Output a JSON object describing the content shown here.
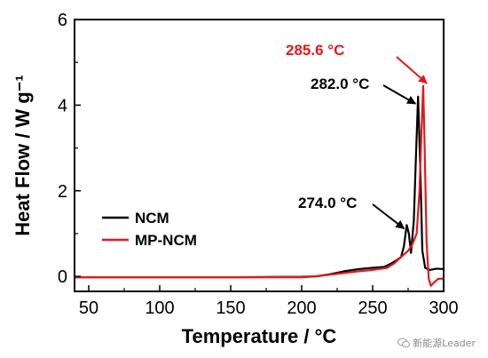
{
  "chart_data": {
    "type": "line",
    "xlabel": "Temperature / °C",
    "ylabel": "Heat Flow / W g⁻¹",
    "xlim": [
      40,
      300
    ],
    "ylim": [
      -0.35,
      6
    ],
    "x_ticks": [
      50,
      100,
      150,
      200,
      250,
      300
    ],
    "y_ticks": [
      0,
      2,
      4,
      6
    ],
    "grid": false,
    "legend_position": "center-left",
    "series": [
      {
        "name": "NCM",
        "color": "#000000",
        "points": [
          [
            40,
            -0.02
          ],
          [
            100,
            -0.02
          ],
          [
            150,
            -0.02
          ],
          [
            200,
            -0.01
          ],
          [
            210,
            0
          ],
          [
            220,
            0.05
          ],
          [
            230,
            0.12
          ],
          [
            240,
            0.17
          ],
          [
            250,
            0.2
          ],
          [
            258,
            0.22
          ],
          [
            263,
            0.3
          ],
          [
            267,
            0.38
          ],
          [
            270,
            0.45
          ],
          [
            272,
            0.7
          ],
          [
            274,
            1.2
          ],
          [
            275.5,
            1.0
          ],
          [
            277,
            0.55
          ],
          [
            279,
            1.3
          ],
          [
            280.5,
            2.8
          ],
          [
            282,
            4.2
          ],
          [
            283.5,
            2.6
          ],
          [
            285,
            0.6
          ],
          [
            287,
            0.2
          ],
          [
            290,
            0.15
          ],
          [
            295,
            0.18
          ],
          [
            300,
            0.17
          ]
        ]
      },
      {
        "name": "MP-NCM",
        "color": "#e3191c",
        "points": [
          [
            40,
            -0.02
          ],
          [
            100,
            -0.02
          ],
          [
            150,
            -0.02
          ],
          [
            200,
            -0.02
          ],
          [
            210,
            0
          ],
          [
            220,
            0.04
          ],
          [
            230,
            0.08
          ],
          [
            240,
            0.12
          ],
          [
            250,
            0.15
          ],
          [
            260,
            0.2
          ],
          [
            265,
            0.3
          ],
          [
            270,
            0.45
          ],
          [
            275,
            0.6
          ],
          [
            278,
            0.75
          ],
          [
            281,
            1.0
          ],
          [
            283,
            2.0
          ],
          [
            284.5,
            3.5
          ],
          [
            285.6,
            4.45
          ],
          [
            286.5,
            3.2
          ],
          [
            288,
            0.8
          ],
          [
            289.5,
            -0.05
          ],
          [
            291,
            -0.22
          ],
          [
            293,
            -0.15
          ],
          [
            296,
            -0.06
          ],
          [
            300,
            -0.05
          ]
        ]
      }
    ],
    "annotations": [
      {
        "text": "285.6 °C",
        "color": "#e3191c",
        "x": 285.6,
        "y": 4.45
      },
      {
        "text": "282.0 °C",
        "color": "#000000",
        "x": 282.0,
        "y": 4.2
      },
      {
        "text": "274.0 °C",
        "color": "#000000",
        "x": 274.0,
        "y": 1.2
      }
    ]
  },
  "watermark": {
    "text": "新能源Leader",
    "icon": "wechat-icon"
  }
}
